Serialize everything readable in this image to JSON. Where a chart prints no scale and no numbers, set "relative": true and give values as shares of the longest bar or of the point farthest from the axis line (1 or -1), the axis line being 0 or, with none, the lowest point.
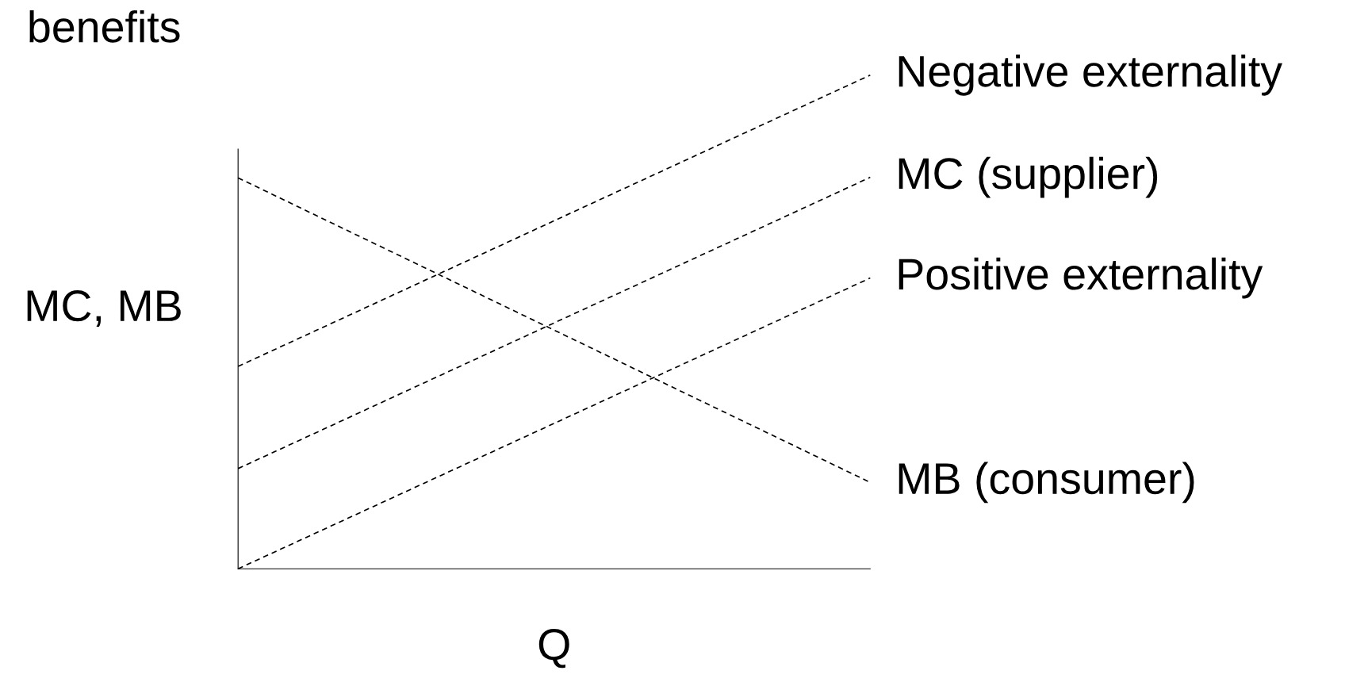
{
  "chart_data": {
    "type": "line",
    "title": "benefits",
    "xlabel": "Q",
    "ylabel": "MC, MB",
    "relative": true,
    "line_style": "dashed",
    "categories": [
      null,
      null
    ],
    "series": [
      {
        "name": "Negative externality",
        "color": "#000000",
        "values": [
          0.41,
          1.0
        ]
      },
      {
        "name": "MC (supplier)",
        "color": "#000000",
        "values": [
          0.203,
          0.793
        ]
      },
      {
        "name": "Positive externality",
        "color": "#000000",
        "values": [
          0,
          0.589
        ]
      },
      {
        "name": "MB (consumer)",
        "color": "#000000",
        "values": [
          0.792,
          0.175
        ]
      }
    ]
  }
}
